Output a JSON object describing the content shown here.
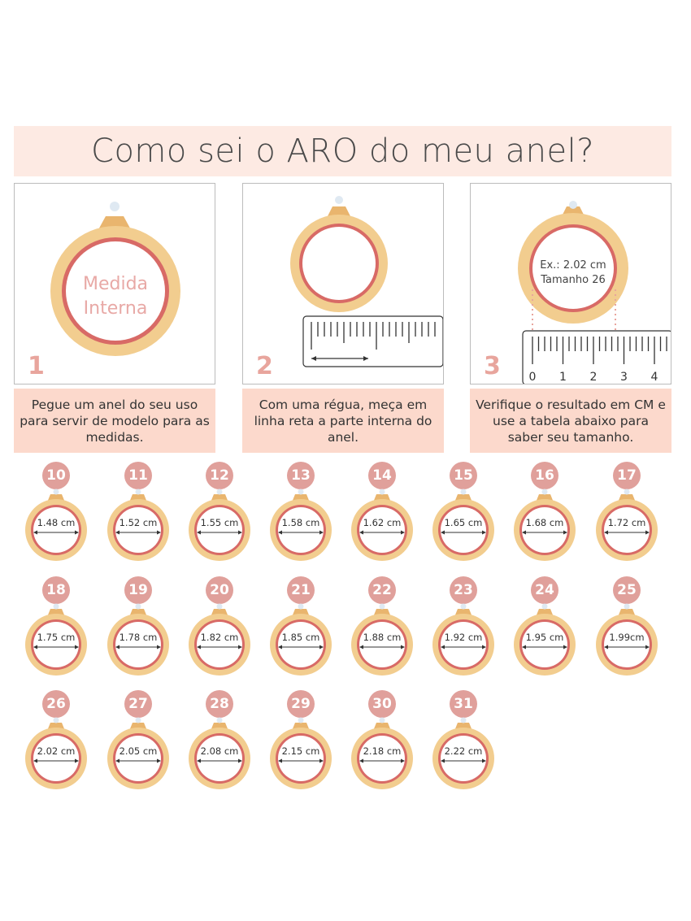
{
  "title": "Como sei o ARO do meu anel?",
  "steps": [
    {
      "number": "1",
      "ring_text_line1": "Medida",
      "ring_text_line2": "Interna",
      "caption": "Pegue um anel do seu uso para servir de modelo para as medidas."
    },
    {
      "number": "2",
      "caption": "Com uma régua, meça em linha reta a parte interna do anel."
    },
    {
      "number": "3",
      "ring_text_line1": "Ex.: 2.02 cm",
      "ring_text_line2": "Tamanho 26",
      "ruler_labels": [
        "0",
        "1",
        "2",
        "3",
        "4"
      ],
      "caption": "Verifique o resultado em CM e use a tabela abaixo para saber seu tamanho."
    }
  ],
  "sizes": [
    {
      "size": "10",
      "measure": "1.48 cm"
    },
    {
      "size": "11",
      "measure": "1.52 cm"
    },
    {
      "size": "12",
      "measure": "1.55 cm"
    },
    {
      "size": "13",
      "measure": "1.58 cm"
    },
    {
      "size": "14",
      "measure": "1.62 cm"
    },
    {
      "size": "15",
      "measure": "1.65 cm"
    },
    {
      "size": "16",
      "measure": "1.68 cm"
    },
    {
      "size": "17",
      "measure": "1.72 cm"
    },
    {
      "size": "18",
      "measure": "1.75 cm"
    },
    {
      "size": "19",
      "measure": "1.78 cm"
    },
    {
      "size": "20",
      "measure": "1.82 cm"
    },
    {
      "size": "21",
      "measure": "1.85 cm"
    },
    {
      "size": "22",
      "measure": "1.88 cm"
    },
    {
      "size": "23",
      "measure": "1.92 cm"
    },
    {
      "size": "24",
      "measure": "1.95 cm"
    },
    {
      "size": "25",
      "measure": "1.99cm"
    },
    {
      "size": "26",
      "measure": "2.02 cm"
    },
    {
      "size": "27",
      "measure": "2.05 cm"
    },
    {
      "size": "28",
      "measure": "2.08 cm"
    },
    {
      "size": "29",
      "measure": "2.15 cm"
    },
    {
      "size": "30",
      "measure": "2.18 cm"
    },
    {
      "size": "31",
      "measure": "2.22 cm"
    }
  ],
  "colors": {
    "gold": "#f2cd8f",
    "inner_red": "#d86a66",
    "badge": "#e0a09b",
    "caption_bg": "#fcd9cc",
    "title_bg": "#fdeae3"
  }
}
